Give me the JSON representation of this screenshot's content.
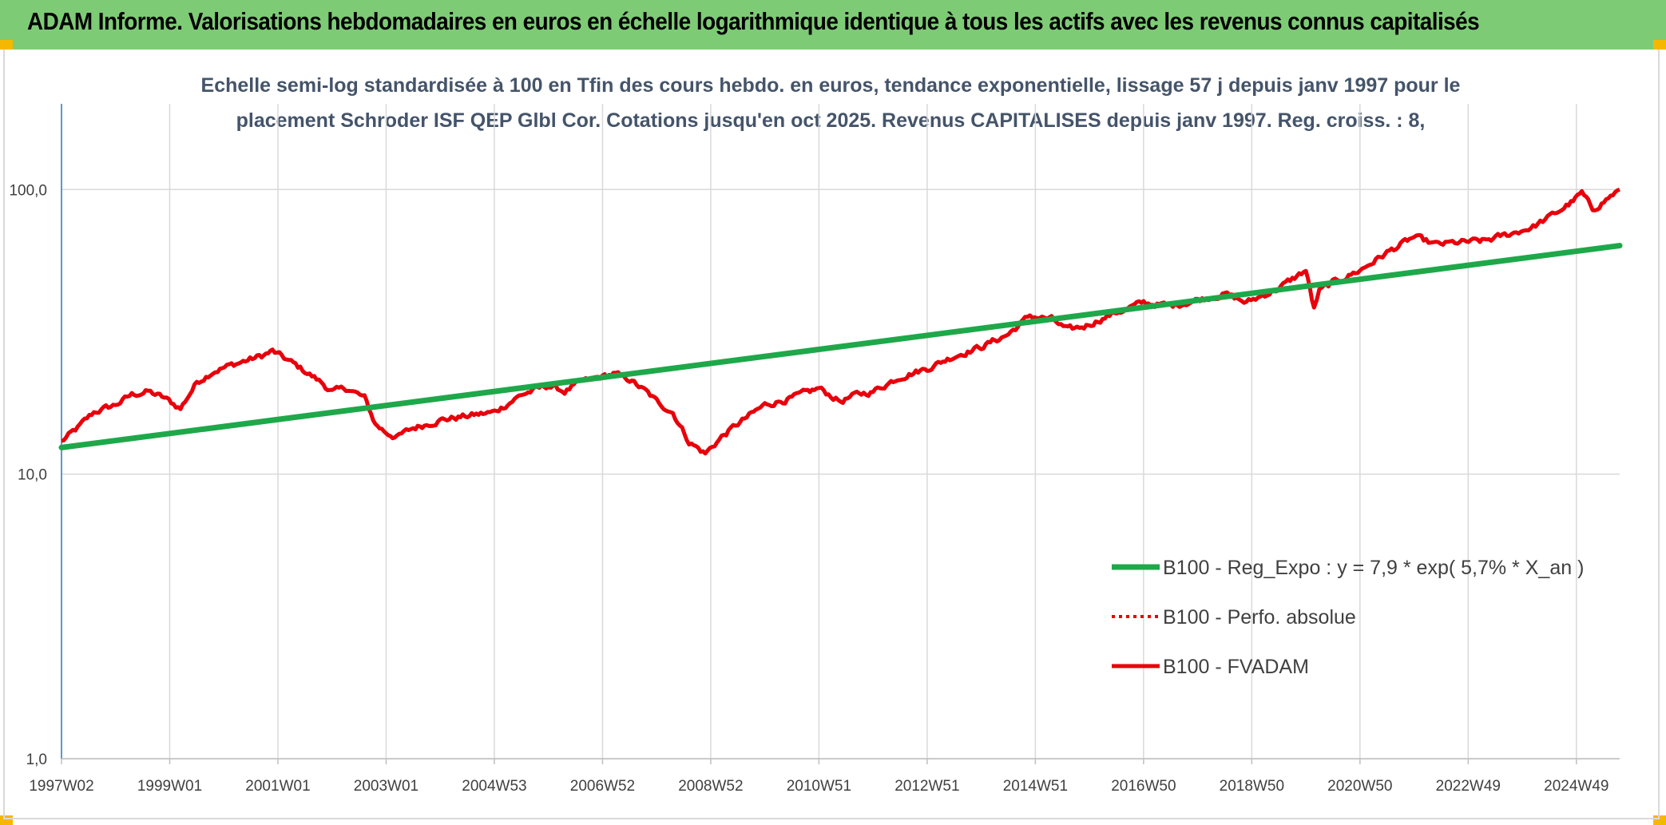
{
  "header": {
    "title": "ADAM Informe. Valorisations hebdomadaires en euros en échelle logarithmique identique à tous les actifs avec les revenus connus capitalisés"
  },
  "colors": {
    "header_bg": "#7ecb76",
    "series_fvadam": "#e8000b",
    "series_trend": "#1ea84a",
    "grid": "#d9d9d9",
    "axis": "#2e75b6"
  },
  "chart_data": {
    "type": "line",
    "title_line1": "Echelle semi-log standardisée à 100 en Tfin des cours hebdo. en euros, tendance exponentielle, lissage 57 j depuis janv 1997 pour le",
    "title_line2": "placement Schroder ISF QEP Glbl Cor. Cotations jusqu'en oct 2025. Revenus CAPITALISES depuis janv 1997. Reg. croiss. : 8,",
    "y_scale": "log",
    "ylim": [
      1,
      200
    ],
    "y_ticks": [
      {
        "value": 1,
        "label": "1,0"
      },
      {
        "value": 10,
        "label": "10,0"
      },
      {
        "value": 100,
        "label": "100,0"
      }
    ],
    "xlim": [
      1997.0,
      2025.8
    ],
    "x_ticks": [
      {
        "value": 1997.0,
        "label": "1997W02"
      },
      {
        "value": 1999.0,
        "label": "1999W01"
      },
      {
        "value": 2001.0,
        "label": "2001W01"
      },
      {
        "value": 2003.0,
        "label": "2003W01"
      },
      {
        "value": 2005.0,
        "label": "2004W53"
      },
      {
        "value": 2007.0,
        "label": "2006W52"
      },
      {
        "value": 2009.0,
        "label": "2008W52"
      },
      {
        "value": 2011.0,
        "label": "2010W51"
      },
      {
        "value": 2013.0,
        "label": "2012W51"
      },
      {
        "value": 2015.0,
        "label": "2014W51"
      },
      {
        "value": 2017.0,
        "label": "2016W50"
      },
      {
        "value": 2019.0,
        "label": "2018W50"
      },
      {
        "value": 2021.0,
        "label": "2020W50"
      },
      {
        "value": 2023.0,
        "label": "2022W49"
      },
      {
        "value": 2025.0,
        "label": "2024W49"
      }
    ],
    "legend_position": "bottom-right",
    "series": [
      {
        "name": "B100 - Reg_Expo : y = 7,9 * exp( 5,7% *  X_an )",
        "style": "solid-thick",
        "color": "#1ea84a",
        "x": [
          1997.0,
          2025.8
        ],
        "values": [
          12.4,
          63.5
        ]
      },
      {
        "name": "B100 - Perfo. absolue",
        "style": "dotted",
        "color": "#e8000b",
        "x": [],
        "values": []
      },
      {
        "name": "B100 - FVADAM",
        "style": "solid",
        "color": "#e8000b",
        "x": [
          1997.0,
          1997.3,
          1997.6,
          1998.0,
          1998.3,
          1998.6,
          1998.9,
          1999.2,
          1999.5,
          1999.8,
          2000.1,
          2000.4,
          2000.7,
          2000.9,
          2001.2,
          2001.5,
          2001.8,
          2002.0,
          2002.3,
          2002.6,
          2002.8,
          2003.0,
          2003.2,
          2003.5,
          2004.0,
          2004.5,
          2005.0,
          2005.5,
          2006.0,
          2006.3,
          2006.6,
          2007.0,
          2007.2,
          2007.5,
          2007.8,
          2008.0,
          2008.3,
          2008.6,
          2008.9,
          2009.2,
          2009.5,
          2010.0,
          2010.5,
          2011.0,
          2011.4,
          2011.7,
          2012.0,
          2012.5,
          2013.0,
          2013.5,
          2014.0,
          2014.5,
          2014.9,
          2015.3,
          2015.6,
          2015.9,
          2016.2,
          2016.5,
          2017.0,
          2017.5,
          2018.0,
          2018.5,
          2018.9,
          2019.5,
          2020.0,
          2020.15,
          2020.25,
          2020.5,
          2021.0,
          2021.5,
          2022.0,
          2022.4,
          2022.8,
          2023.3,
          2023.8,
          2024.2,
          2024.6,
          2024.9,
          2025.1,
          2025.3,
          2025.8
        ],
        "values": [
          13,
          14.5,
          16.5,
          17.5,
          19,
          19.5,
          18.5,
          17,
          21,
          23,
          24,
          25,
          26,
          27,
          25,
          23,
          21,
          19.5,
          20,
          18.5,
          15,
          14,
          13.5,
          14.5,
          15.5,
          16,
          16.5,
          19,
          20.5,
          19.5,
          21,
          22,
          22.5,
          21.5,
          19.5,
          18,
          16.5,
          13,
          11.8,
          13.5,
          15,
          17.5,
          18.5,
          20,
          18,
          19,
          19.5,
          22,
          23.5,
          26,
          28,
          31,
          36,
          35,
          32,
          33,
          35,
          37,
          40,
          39,
          41,
          43,
          40,
          45,
          52,
          38,
          44,
          47,
          52,
          60,
          68,
          64,
          65,
          66,
          70,
          74,
          82,
          90,
          97,
          85,
          100
        ]
      }
    ]
  }
}
